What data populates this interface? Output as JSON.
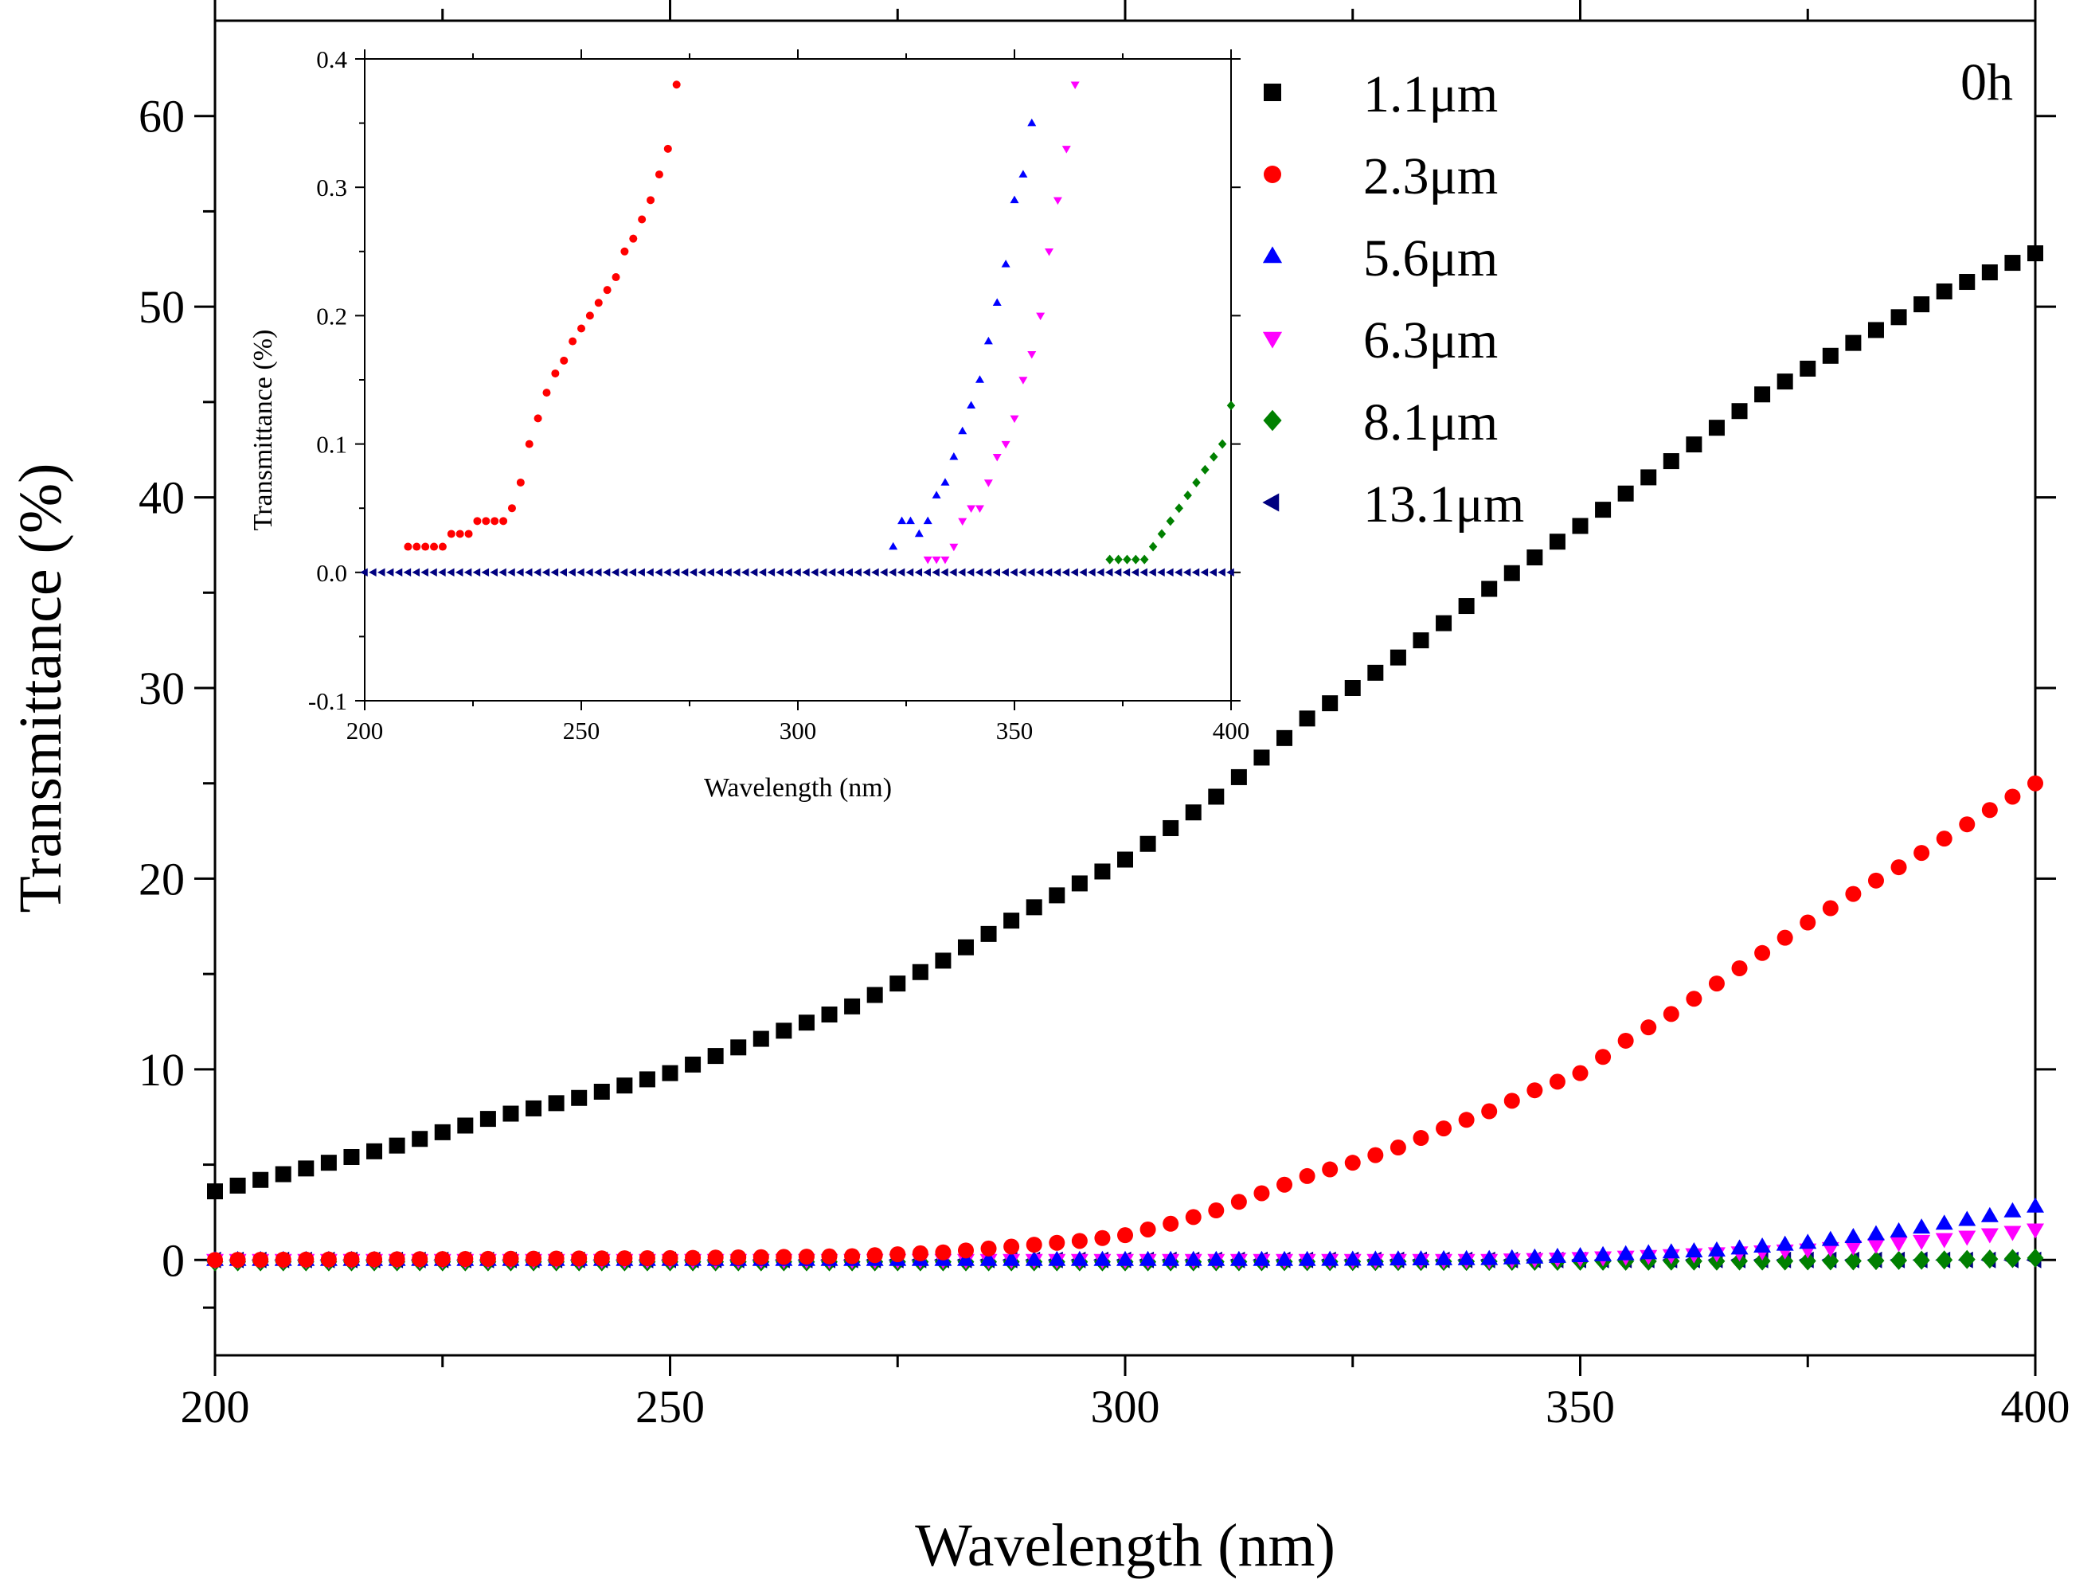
{
  "chart_data": [
    {
      "id": "main",
      "type": "scatter",
      "xlabel": "Wavelength (nm)",
      "ylabel": "Transmittance (%)",
      "xlim": [
        200,
        400
      ],
      "ylim": [
        -5,
        65
      ],
      "xticks": [
        200,
        250,
        300,
        350,
        400
      ],
      "yticks": [
        0,
        10,
        20,
        30,
        40,
        50,
        60
      ],
      "annotation": "0h",
      "legend_position": "top-right",
      "legend": [
        "1.1μm",
        "2.3μm",
        "5.6μm",
        "6.3μm",
        "8.1μm",
        "13.1μm"
      ],
      "series": [
        {
          "name": "1.1μm",
          "color": "#000000",
          "marker": "square",
          "x": [
            200,
            210,
            220,
            230,
            240,
            250,
            260,
            270,
            280,
            290,
            300,
            310,
            320,
            330,
            340,
            350,
            360,
            370,
            380,
            390,
            400
          ],
          "y": [
            3.6,
            4.8,
            6.0,
            7.4,
            8.5,
            9.8,
            11.6,
            13.3,
            15.7,
            18.5,
            21.0,
            24.3,
            28.4,
            31.6,
            35.2,
            38.5,
            41.9,
            45.4,
            48.1,
            50.8,
            52.8
          ]
        },
        {
          "name": "2.3μm",
          "color": "#ff0000",
          "marker": "circle",
          "x": [
            200,
            250,
            270,
            280,
            290,
            295,
            300,
            305,
            310,
            315,
            320,
            325,
            330,
            335,
            340,
            345,
            350,
            355,
            360,
            365,
            370,
            375,
            380,
            385,
            390,
            395,
            400
          ],
          "y": [
            0,
            0.1,
            0.2,
            0.4,
            0.8,
            1.0,
            1.3,
            1.9,
            2.6,
            3.5,
            4.4,
            5.1,
            5.9,
            6.9,
            7.8,
            8.9,
            9.8,
            11.5,
            12.9,
            14.5,
            16.1,
            17.7,
            19.2,
            20.6,
            22.1,
            23.6,
            25.0
          ]
        },
        {
          "name": "5.6μm",
          "color": "#0000ff",
          "marker": "triangle-up",
          "x": [
            200,
            300,
            320,
            340,
            350,
            355,
            360,
            365,
            370,
            375,
            380,
            385,
            390,
            395,
            400
          ],
          "y": [
            0,
            0,
            0,
            0.05,
            0.2,
            0.3,
            0.4,
            0.5,
            0.7,
            0.9,
            1.2,
            1.5,
            1.9,
            2.3,
            2.8
          ]
        },
        {
          "name": "6.3μm",
          "color": "#ff00ff",
          "marker": "triangle-down",
          "x": [
            200,
            300,
            340,
            350,
            360,
            365,
            370,
            375,
            380,
            385,
            390,
            395,
            400
          ],
          "y": [
            0,
            0,
            0,
            0.1,
            0.25,
            0.35,
            0.45,
            0.55,
            0.7,
            0.9,
            1.1,
            1.35,
            1.6
          ]
        },
        {
          "name": "8.1μm",
          "color": "#008000",
          "marker": "diamond",
          "x": [
            200,
            300,
            380,
            390,
            400
          ],
          "y": [
            -0.1,
            -0.1,
            -0.05,
            0.0,
            0.1
          ]
        },
        {
          "name": "13.1μm",
          "color": "#000080",
          "marker": "triangle-left",
          "x": [
            200,
            300,
            400
          ],
          "y": [
            0,
            0,
            0
          ]
        }
      ]
    },
    {
      "id": "inset",
      "type": "scatter",
      "xlabel": "Wavelength (nm)",
      "ylabel": "Transmittance (%)",
      "xlim": [
        200,
        400
      ],
      "ylim": [
        -0.1,
        0.4
      ],
      "xticks": [
        200,
        250,
        300,
        350,
        400
      ],
      "yticks": [
        -0.1,
        0.0,
        0.1,
        0.2,
        0.3,
        0.4
      ],
      "ytick_labels": [
        "-0.1",
        "0.0",
        "0.1",
        "0.2",
        "0.3",
        "0.4"
      ],
      "series": [
        {
          "name": "2.3μm",
          "color": "#ff0000",
          "marker": "circle",
          "x": [
            210,
            212,
            214,
            216,
            218,
            220,
            222,
            224,
            226,
            228,
            230,
            232,
            234,
            236,
            238,
            240,
            242,
            244,
            246,
            248,
            250,
            252,
            254,
            256,
            258,
            260,
            262,
            264,
            266,
            268,
            270,
            272
          ],
          "y": [
            0.02,
            0.02,
            0.02,
            0.02,
            0.02,
            0.03,
            0.03,
            0.03,
            0.04,
            0.04,
            0.04,
            0.04,
            0.05,
            0.07,
            0.1,
            0.12,
            0.14,
            0.155,
            0.165,
            0.18,
            0.19,
            0.2,
            0.21,
            0.22,
            0.23,
            0.25,
            0.26,
            0.275,
            0.29,
            0.31,
            0.33,
            0.38
          ]
        },
        {
          "name": "5.6μm",
          "color": "#0000ff",
          "marker": "triangle-up",
          "x": [
            322,
            324,
            326,
            328,
            330,
            332,
            334,
            336,
            338,
            340,
            342,
            344,
            346,
            348,
            350,
            352,
            354
          ],
          "y": [
            0.02,
            0.04,
            0.04,
            0.03,
            0.04,
            0.06,
            0.07,
            0.09,
            0.11,
            0.13,
            0.15,
            0.18,
            0.21,
            0.24,
            0.29,
            0.31,
            0.35
          ]
        },
        {
          "name": "6.3μm",
          "color": "#ff00ff",
          "marker": "triangle-down",
          "x": [
            330,
            332,
            334,
            336,
            338,
            340,
            342,
            344,
            346,
            348,
            350,
            352,
            354,
            356,
            358,
            360,
            362,
            364
          ],
          "y": [
            0.01,
            0.01,
            0.01,
            0.02,
            0.04,
            0.05,
            0.05,
            0.07,
            0.09,
            0.1,
            0.12,
            0.15,
            0.17,
            0.2,
            0.25,
            0.29,
            0.33,
            0.38
          ]
        },
        {
          "name": "8.1μm",
          "color": "#008000",
          "marker": "diamond",
          "x": [
            372,
            374,
            376,
            378,
            380,
            382,
            384,
            386,
            388,
            390,
            392,
            394,
            396,
            398,
            400
          ],
          "y": [
            0.01,
            0.01,
            0.01,
            0.01,
            0.01,
            0.02,
            0.03,
            0.04,
            0.05,
            0.06,
            0.07,
            0.08,
            0.09,
            0.1,
            0.13
          ]
        },
        {
          "name": "13.1μm",
          "color": "#000080",
          "marker": "triangle-left",
          "x": [
            200,
            300,
            400
          ],
          "y": [
            0,
            0,
            0
          ]
        }
      ]
    }
  ]
}
